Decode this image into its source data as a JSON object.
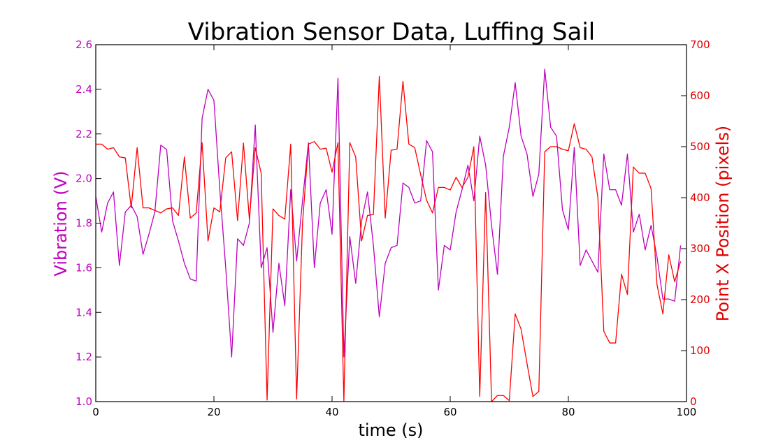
{
  "chart_data": {
    "type": "line",
    "title": "Vibration Sensor Data, Luffing Sail",
    "xlabel": "time (s)",
    "ylabel_left": "Vibration (V)",
    "ylabel_right": "Point X Position (pixels)",
    "xlim": [
      0,
      100
    ],
    "ylim_left": [
      1.0,
      2.6
    ],
    "ylim_right": [
      0,
      700
    ],
    "x_ticks": [
      "0",
      "20",
      "40",
      "60",
      "80",
      "100"
    ],
    "y_ticks_left": [
      "1.0",
      "1.2",
      "1.4",
      "1.6",
      "1.8",
      "2.0",
      "2.2",
      "2.4",
      "2.6"
    ],
    "y_ticks_right": [
      "0",
      "100",
      "200",
      "300",
      "400",
      "500",
      "600",
      "700"
    ],
    "grid": false,
    "colors": {
      "vibration": "#bf00bf",
      "position": "#ff0000"
    },
    "series": [
      {
        "axis": "left",
        "x": [
          0,
          1,
          2,
          3,
          4,
          5,
          6,
          7,
          8,
          9,
          10,
          11,
          12,
          13,
          14,
          15,
          16,
          17,
          18,
          19,
          20,
          21,
          22,
          23,
          24,
          25,
          26,
          27,
          28,
          29,
          30,
          31,
          32,
          33,
          34,
          35,
          36,
          37,
          38,
          39,
          40,
          41,
          42,
          43,
          44,
          45,
          46,
          47,
          48,
          49,
          50,
          51,
          52,
          53,
          54,
          55,
          56,
          57,
          58,
          59,
          60,
          61,
          62,
          63,
          64,
          65,
          66,
          67,
          68,
          69,
          70,
          71,
          72,
          73,
          74,
          75,
          76,
          77,
          78,
          79,
          80,
          81,
          82,
          83,
          84,
          85,
          86,
          87,
          88,
          89,
          90,
          91,
          92,
          93,
          94,
          95,
          96,
          97,
          98,
          99
        ],
        "values": [
          1.92,
          1.76,
          1.89,
          1.94,
          1.61,
          1.85,
          1.88,
          1.83,
          1.66,
          1.75,
          1.85,
          2.15,
          2.13,
          1.81,
          1.72,
          1.62,
          1.55,
          1.54,
          2.27,
          2.4,
          2.35,
          1.95,
          1.6,
          1.2,
          1.73,
          1.7,
          1.8,
          2.24,
          1.6,
          1.69,
          1.31,
          1.62,
          1.43,
          1.95,
          1.63,
          1.9,
          2.16,
          1.6,
          1.89,
          1.95,
          1.75,
          2.45,
          1.2,
          1.74,
          1.53,
          1.81,
          1.94,
          1.7,
          1.38,
          1.62,
          1.69,
          1.7,
          1.98,
          1.96,
          1.89,
          1.9,
          2.17,
          2.12,
          1.5,
          1.7,
          1.68,
          1.85,
          1.95,
          2.06,
          1.9,
          2.19,
          2.06,
          1.79,
          1.57,
          2.1,
          2.23,
          2.43,
          2.19,
          2.11,
          1.92,
          2.02,
          2.49,
          2.23,
          2.19,
          1.86,
          1.77,
          2.14,
          1.61,
          1.68,
          1.63,
          1.58,
          2.11,
          1.95,
          1.95,
          1.88,
          2.11,
          1.76,
          1.84,
          1.68,
          1.79,
          1.65,
          1.46,
          1.46,
          1.45,
          1.7
        ]
      },
      {
        "axis": "right",
        "x": [
          0,
          1,
          2,
          3,
          4,
          5,
          6,
          7,
          8,
          9,
          10,
          11,
          12,
          13,
          14,
          15,
          16,
          17,
          18,
          19,
          20,
          21,
          22,
          23,
          24,
          25,
          26,
          27,
          28,
          29,
          30,
          31,
          32,
          33,
          34,
          35,
          36,
          37,
          38,
          39,
          40,
          41,
          42,
          43,
          44,
          45,
          46,
          47,
          48,
          49,
          50,
          51,
          52,
          53,
          54,
          55,
          56,
          57,
          58,
          59,
          60,
          61,
          62,
          63,
          64,
          65,
          66,
          67,
          68,
          69,
          70,
          71,
          72,
          73,
          74,
          75,
          76,
          77,
          78,
          79,
          80,
          81,
          82,
          83,
          84,
          85,
          86,
          87,
          88,
          89,
          90,
          91,
          92,
          93,
          94,
          95,
          96,
          97,
          98,
          99
        ],
        "values": [
          505,
          505,
          495,
          498,
          480,
          478,
          380,
          498,
          380,
          380,
          375,
          370,
          378,
          380,
          365,
          480,
          360,
          370,
          508,
          315,
          380,
          372,
          478,
          490,
          355,
          507,
          358,
          498,
          448,
          3,
          378,
          365,
          358,
          505,
          5,
          350,
          505,
          510,
          495,
          497,
          450,
          508,
          0,
          508,
          480,
          315,
          365,
          367,
          638,
          360,
          493,
          495,
          628,
          505,
          498,
          445,
          395,
          370,
          420,
          420,
          415,
          440,
          420,
          440,
          500,
          10,
          410,
          0,
          12,
          12,
          2,
          172,
          142,
          75,
          10,
          20,
          490,
          500,
          500,
          495,
          492,
          545,
          498,
          495,
          480,
          400,
          138,
          115,
          115,
          250,
          210,
          460,
          448,
          448,
          418,
          230,
          172,
          288,
          235,
          275
        ]
      }
    ]
  }
}
